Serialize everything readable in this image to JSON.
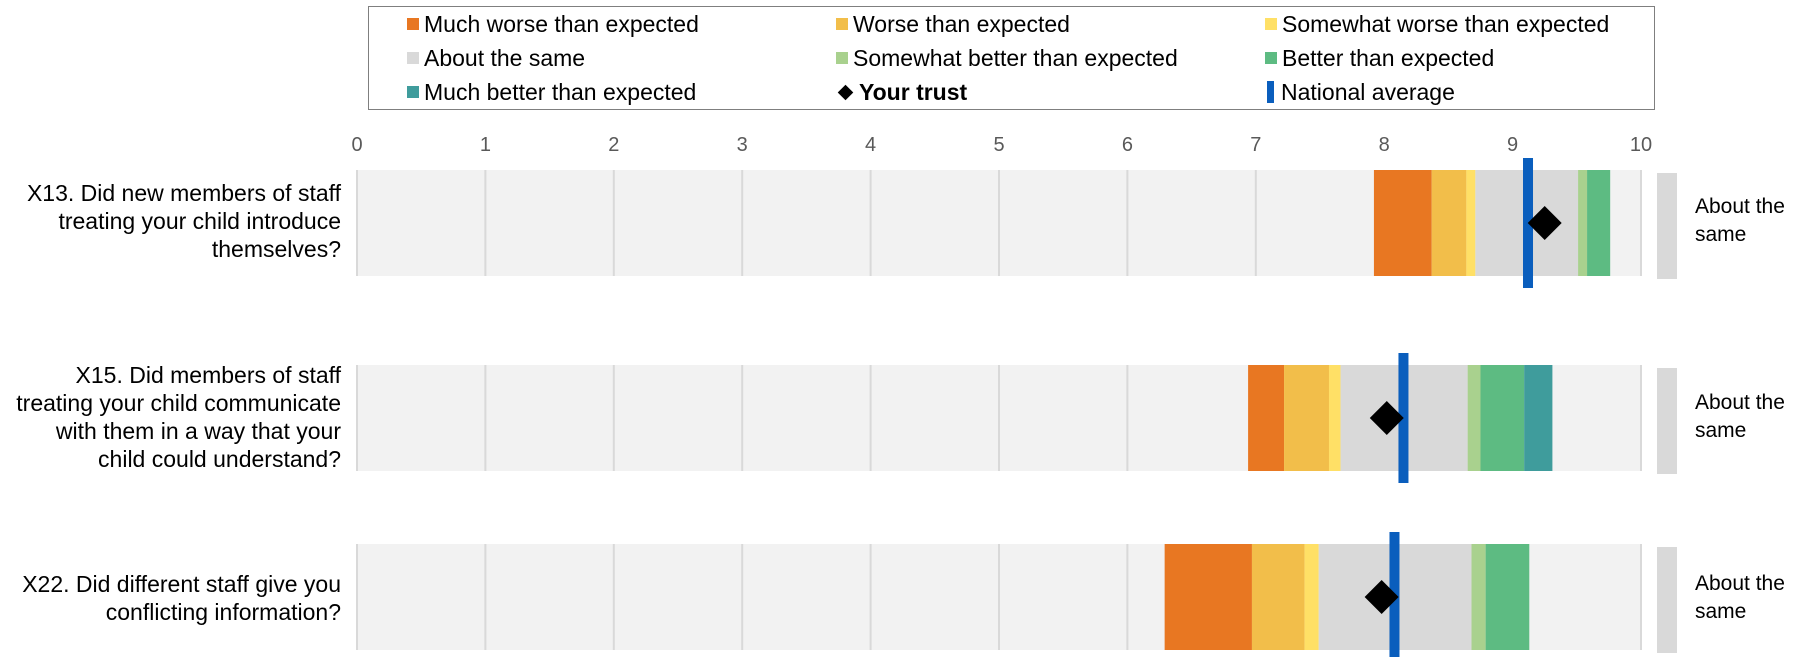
{
  "chart_data": {
    "type": "bar",
    "xlim": [
      0,
      10
    ],
    "xticks": [
      "0",
      "1",
      "2",
      "3",
      "4",
      "5",
      "6",
      "7",
      "8",
      "9",
      "10"
    ],
    "grid": true,
    "legend_position": "top",
    "legend": [
      {
        "label": "Much worse than expected",
        "color": "#E87722",
        "marker": "square"
      },
      {
        "label": "Worse than expected",
        "color": "#F2BE4A",
        "marker": "square"
      },
      {
        "label": "Somewhat worse than expected",
        "color": "#FFE066",
        "marker": "square"
      },
      {
        "label": "About the same",
        "color": "#D9D9D9",
        "marker": "square"
      },
      {
        "label": "Somewhat better than expected",
        "color": "#A9D18E",
        "marker": "square"
      },
      {
        "label": "Better than expected",
        "color": "#5DBB82",
        "marker": "square"
      },
      {
        "label": "Much better than expected",
        "color": "#3F9C9C",
        "marker": "square"
      },
      {
        "label": "Your trust",
        "color": "#000000",
        "marker": "diamond"
      },
      {
        "label": "National average",
        "color": "#0A5EBD",
        "marker": "bar"
      }
    ],
    "questions": [
      {
        "label": "X13. Did new members of staff treating your child introduce themselves?",
        "label_lines": [
          "X13. Did new members of staff",
          "treating your child introduce",
          "themselves?"
        ],
        "bands": [
          {
            "category": "Much worse than expected",
            "start": 7.92,
            "end": 8.37
          },
          {
            "category": "Worse than expected",
            "start": 8.37,
            "end": 8.64
          },
          {
            "category": "Somewhat worse than expected",
            "start": 8.64,
            "end": 8.71
          },
          {
            "category": "About the same",
            "start": 8.71,
            "end": 9.51
          },
          {
            "category": "Somewhat better than expected",
            "start": 9.51,
            "end": 9.58
          },
          {
            "category": "Better than expected",
            "start": 9.58,
            "end": 9.76
          }
        ],
        "your_trust": 9.25,
        "national_average": 9.12,
        "result": "About the same"
      },
      {
        "label": "X15. Did members of staff treating your child communicate with them in a way that your child could understand?",
        "label_lines": [
          "X15. Did members of staff",
          "treating your child communicate",
          "with them in a way that your",
          "child could understand?"
        ],
        "bands": [
          {
            "category": "Much worse than expected",
            "start": 6.94,
            "end": 7.22
          },
          {
            "category": "Worse than expected",
            "start": 7.22,
            "end": 7.57
          },
          {
            "category": "Somewhat worse than expected",
            "start": 7.57,
            "end": 7.66
          },
          {
            "category": "About the same",
            "start": 7.66,
            "end": 8.65
          },
          {
            "category": "Somewhat better than expected",
            "start": 8.65,
            "end": 8.75
          },
          {
            "category": "Better than expected",
            "start": 8.75,
            "end": 9.09
          },
          {
            "category": "Much better than expected",
            "start": 9.09,
            "end": 9.31
          }
        ],
        "your_trust": 8.02,
        "national_average": 8.15,
        "result": "About the same"
      },
      {
        "label": "X22. Did different staff give you conflicting information?",
        "label_lines": [
          "X22. Did different staff give you",
          "conflicting information?"
        ],
        "bands": [
          {
            "category": "Much worse than expected",
            "start": 6.29,
            "end": 6.97
          },
          {
            "category": "Worse than expected",
            "start": 6.97,
            "end": 7.38
          },
          {
            "category": "Somewhat worse than expected",
            "start": 7.38,
            "end": 7.49
          },
          {
            "category": "About the same",
            "start": 7.49,
            "end": 8.68
          },
          {
            "category": "Somewhat better than expected",
            "start": 8.68,
            "end": 8.79
          },
          {
            "category": "Better than expected",
            "start": 8.79,
            "end": 9.13
          }
        ],
        "your_trust": 7.98,
        "national_average": 8.08,
        "result": "About the same"
      }
    ]
  }
}
